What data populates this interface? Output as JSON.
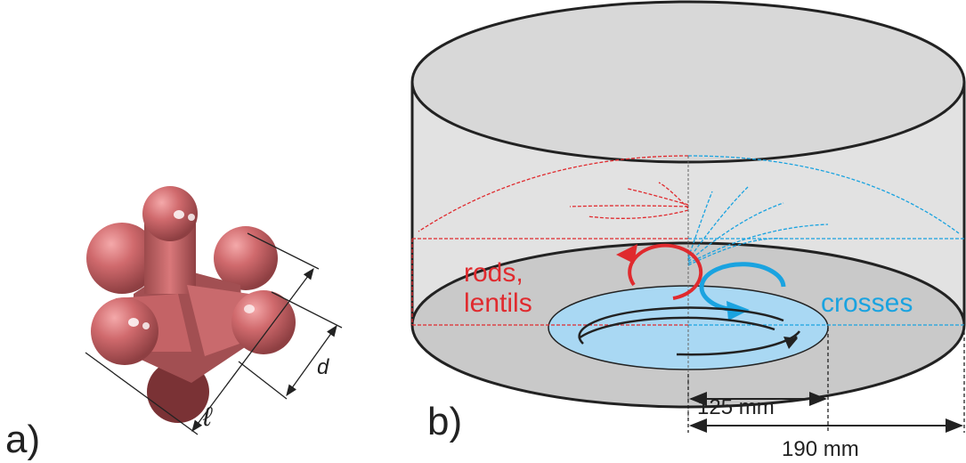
{
  "panel_a": {
    "label": "a)",
    "dimension_length": "ℓ",
    "dimension_diameter": "d"
  },
  "panel_b": {
    "label": "b)",
    "left_text_line1": "rods,",
    "left_text_line2": "lentils",
    "right_text": "crosses",
    "dim_inner": "125 mm",
    "dim_outer": "190 mm"
  },
  "colors": {
    "particle": "#d36d70",
    "rods_red": "#e02a2e",
    "crosses_blue": "#1aa3e0",
    "tank_gray": "#d8d8d8",
    "disk_blue": "#a9d8f3"
  }
}
